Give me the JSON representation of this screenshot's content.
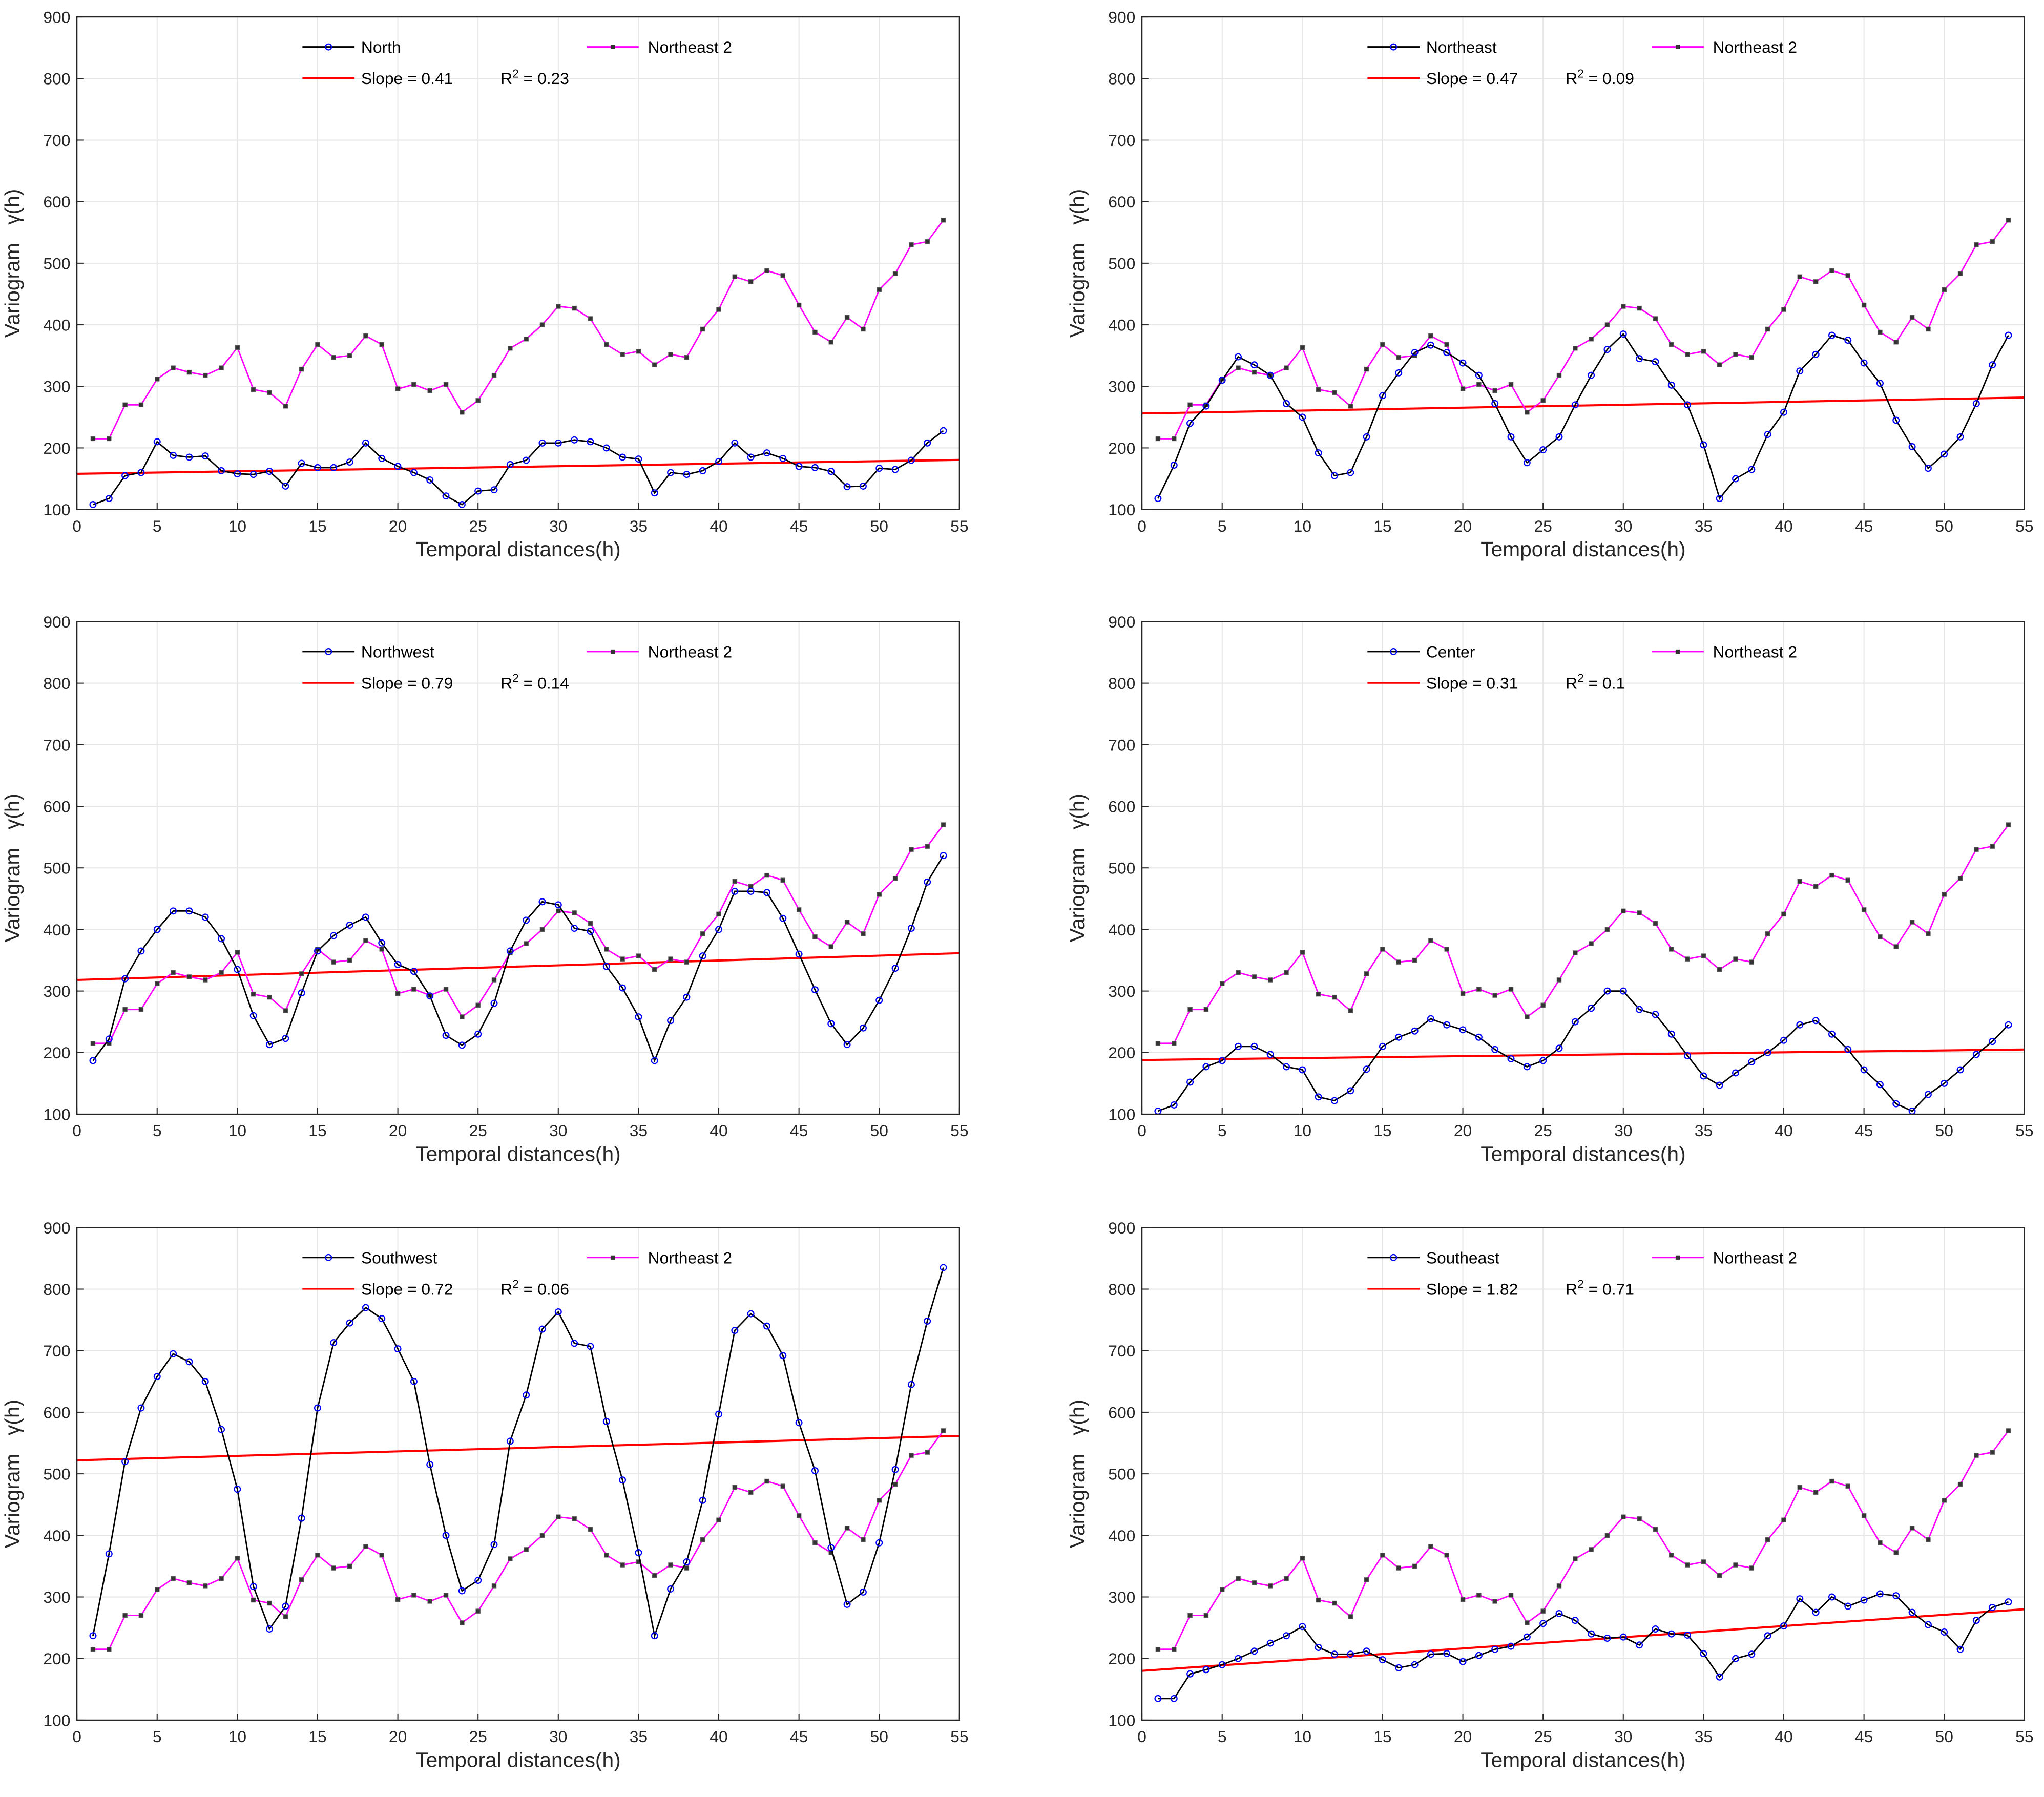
{
  "colors": {
    "reference": "#ff00ff",
    "station": "#000000",
    "station_marker": "#0000ff",
    "trend": "#ff0000",
    "grid": "#e6e6e6"
  },
  "chart_data": [
    {
      "type": "line",
      "xlabel": "Temporal distances(h)",
      "ylabel": "Variogram",
      "ylabel_symbol": "γ(h)",
      "xlim": [
        0,
        55
      ],
      "ylim": [
        100,
        900
      ],
      "xticks": [
        0,
        5,
        10,
        15,
        20,
        25,
        30,
        35,
        40,
        45,
        50,
        55
      ],
      "yticks": [
        100,
        200,
        300,
        400,
        500,
        600,
        700,
        800,
        900
      ],
      "grid": true,
      "legend_position": "top",
      "series": [
        {
          "name": "North",
          "values": [
            108,
            118,
            155,
            160,
            210,
            188,
            185,
            187,
            163,
            158,
            157,
            162,
            138,
            175,
            168,
            168,
            177,
            208,
            183,
            170,
            160,
            148,
            122,
            108,
            130,
            132,
            173,
            180,
            208,
            208,
            213,
            210,
            200,
            185,
            182,
            127,
            160,
            157,
            163,
            178,
            208,
            185,
            192,
            183,
            170,
            168,
            162,
            137,
            138,
            167,
            165,
            180,
            208,
            228
          ]
        },
        {
          "name": "Northeast 2",
          "values": [
            215,
            215,
            270,
            270,
            312,
            330,
            323,
            318,
            330,
            363,
            295,
            290,
            268,
            328,
            368,
            347,
            350,
            382,
            368,
            296,
            303,
            293,
            303,
            258,
            277,
            318,
            362,
            377,
            400,
            430,
            427,
            410,
            368,
            352,
            357,
            335,
            352,
            347,
            393,
            425,
            478,
            470,
            488,
            480,
            432,
            388,
            372,
            412,
            393,
            457,
            483,
            530,
            535,
            570
          ]
        }
      ],
      "trend": {
        "slope": 0.41,
        "intercept": 158,
        "slope_label": "Slope = 0.41",
        "r2_prefix": "R",
        "r2_sup": "2",
        "r2_value": " = 0.23"
      }
    },
    {
      "type": "line",
      "xlabel": "Temporal distances(h)",
      "ylabel": "Variogram",
      "ylabel_symbol": "γ(h)",
      "xlim": [
        0,
        55
      ],
      "ylim": [
        100,
        900
      ],
      "xticks": [
        0,
        5,
        10,
        15,
        20,
        25,
        30,
        35,
        40,
        45,
        50,
        55
      ],
      "yticks": [
        100,
        200,
        300,
        400,
        500,
        600,
        700,
        800,
        900
      ],
      "grid": true,
      "legend_position": "top",
      "series": [
        {
          "name": "Northeast",
          "values": [
            118,
            172,
            240,
            268,
            310,
            348,
            335,
            318,
            272,
            250,
            192,
            155,
            160,
            218,
            285,
            322,
            355,
            367,
            355,
            338,
            318,
            272,
            218,
            176,
            197,
            218,
            270,
            318,
            360,
            385,
            345,
            340,
            302,
            270,
            205,
            118,
            150,
            165,
            222,
            258,
            325,
            352,
            383,
            375,
            338,
            305,
            245,
            202,
            167,
            190,
            218,
            272,
            335,
            383
          ]
        },
        {
          "name": "Northeast 2",
          "values": [
            215,
            215,
            270,
            270,
            312,
            330,
            323,
            318,
            330,
            363,
            295,
            290,
            268,
            328,
            368,
            347,
            350,
            382,
            368,
            296,
            303,
            293,
            303,
            258,
            277,
            318,
            362,
            377,
            400,
            430,
            427,
            410,
            368,
            352,
            357,
            335,
            352,
            347,
            393,
            425,
            478,
            470,
            488,
            480,
            432,
            388,
            372,
            412,
            393,
            457,
            483,
            530,
            535,
            570
          ]
        }
      ],
      "trend": {
        "slope": 0.47,
        "intercept": 256,
        "slope_label": "Slope = 0.47",
        "r2_prefix": "R",
        "r2_sup": "2",
        "r2_value": " = 0.09"
      }
    },
    {
      "type": "line",
      "xlabel": "Temporal distances(h)",
      "ylabel": "Variogram",
      "ylabel_symbol": "γ(h)",
      "xlim": [
        0,
        55
      ],
      "ylim": [
        100,
        900
      ],
      "xticks": [
        0,
        5,
        10,
        15,
        20,
        25,
        30,
        35,
        40,
        45,
        50,
        55
      ],
      "yticks": [
        100,
        200,
        300,
        400,
        500,
        600,
        700,
        800,
        900
      ],
      "grid": true,
      "legend_position": "top",
      "series": [
        {
          "name": "Northwest",
          "values": [
            187,
            222,
            320,
            365,
            400,
            430,
            430,
            420,
            385,
            335,
            260,
            213,
            223,
            297,
            365,
            390,
            407,
            420,
            378,
            343,
            332,
            292,
            228,
            212,
            230,
            280,
            365,
            415,
            445,
            440,
            402,
            397,
            340,
            305,
            258,
            187,
            252,
            290,
            357,
            400,
            462,
            462,
            460,
            418,
            360,
            302,
            247,
            213,
            240,
            285,
            337,
            402,
            477,
            520
          ]
        },
        {
          "name": "Northeast 2",
          "values": [
            215,
            215,
            270,
            270,
            312,
            330,
            323,
            318,
            330,
            363,
            295,
            290,
            268,
            328,
            368,
            347,
            350,
            382,
            368,
            296,
            303,
            293,
            303,
            258,
            277,
            318,
            362,
            377,
            400,
            430,
            427,
            410,
            368,
            352,
            357,
            335,
            352,
            347,
            393,
            425,
            478,
            470,
            488,
            480,
            432,
            388,
            372,
            412,
            393,
            457,
            483,
            530,
            535,
            570
          ]
        }
      ],
      "trend": {
        "slope": 0.79,
        "intercept": 318,
        "slope_label": "Slope = 0.79",
        "r2_prefix": "R",
        "r2_sup": "2",
        "r2_value": " = 0.14"
      }
    },
    {
      "type": "line",
      "xlabel": "Temporal distances(h)",
      "ylabel": "Variogram",
      "ylabel_symbol": "γ(h)",
      "xlim": [
        0,
        55
      ],
      "ylim": [
        100,
        900
      ],
      "xticks": [
        0,
        5,
        10,
        15,
        20,
        25,
        30,
        35,
        40,
        45,
        50,
        55
      ],
      "yticks": [
        100,
        200,
        300,
        400,
        500,
        600,
        700,
        800,
        900
      ],
      "grid": true,
      "legend_position": "top",
      "series": [
        {
          "name": "Center",
          "values": [
            105,
            115,
            152,
            177,
            187,
            210,
            210,
            197,
            177,
            172,
            128,
            122,
            138,
            173,
            210,
            225,
            235,
            255,
            245,
            237,
            225,
            205,
            190,
            177,
            187,
            207,
            250,
            272,
            300,
            300,
            270,
            262,
            230,
            195,
            162,
            147,
            167,
            185,
            200,
            220,
            245,
            252,
            230,
            205,
            172,
            148,
            117,
            105,
            132,
            150,
            172,
            197,
            218,
            245
          ]
        },
        {
          "name": "Northeast 2",
          "values": [
            215,
            215,
            270,
            270,
            312,
            330,
            323,
            318,
            330,
            363,
            295,
            290,
            268,
            328,
            368,
            347,
            350,
            382,
            368,
            296,
            303,
            293,
            303,
            258,
            277,
            318,
            362,
            377,
            400,
            430,
            427,
            410,
            368,
            352,
            357,
            335,
            352,
            347,
            393,
            425,
            478,
            470,
            488,
            480,
            432,
            388,
            372,
            412,
            393,
            457,
            483,
            530,
            535,
            570
          ]
        }
      ],
      "trend": {
        "slope": 0.31,
        "intercept": 188,
        "slope_label": "Slope = 0.31",
        "r2_prefix": "R",
        "r2_sup": "2",
        "r2_value": " = 0.1"
      }
    },
    {
      "type": "line",
      "xlabel": "Temporal distances(h)",
      "ylabel": "Variogram",
      "ylabel_symbol": "γ(h)",
      "xlim": [
        0,
        55
      ],
      "ylim": [
        100,
        900
      ],
      "xticks": [
        0,
        5,
        10,
        15,
        20,
        25,
        30,
        35,
        40,
        45,
        50,
        55
      ],
      "yticks": [
        100,
        200,
        300,
        400,
        500,
        600,
        700,
        800,
        900
      ],
      "grid": true,
      "legend_position": "top",
      "series": [
        {
          "name": "Southwest",
          "values": [
            237,
            370,
            520,
            607,
            658,
            695,
            682,
            650,
            572,
            475,
            317,
            248,
            285,
            428,
            607,
            713,
            745,
            770,
            752,
            703,
            650,
            515,
            400,
            310,
            327,
            385,
            553,
            628,
            735,
            763,
            712,
            707,
            585,
            490,
            372,
            237,
            313,
            357,
            457,
            597,
            733,
            760,
            740,
            692,
            583,
            505,
            380,
            288,
            308,
            388,
            507,
            645,
            748,
            835
          ]
        },
        {
          "name": "Northeast 2",
          "values": [
            215,
            215,
            270,
            270,
            312,
            330,
            323,
            318,
            330,
            363,
            295,
            290,
            268,
            328,
            368,
            347,
            350,
            382,
            368,
            296,
            303,
            293,
            303,
            258,
            277,
            318,
            362,
            377,
            400,
            430,
            427,
            410,
            368,
            352,
            357,
            335,
            352,
            347,
            393,
            425,
            478,
            470,
            488,
            480,
            432,
            388,
            372,
            412,
            393,
            457,
            483,
            530,
            535,
            570
          ]
        }
      ],
      "trend": {
        "slope": 0.72,
        "intercept": 522,
        "slope_label": "Slope = 0.72",
        "r2_prefix": "R",
        "r2_sup": "2",
        "r2_value": " = 0.06"
      }
    },
    {
      "type": "line",
      "xlabel": "Temporal distances(h)",
      "ylabel": "Variogram",
      "ylabel_symbol": "γ(h)",
      "xlim": [
        0,
        55
      ],
      "ylim": [
        100,
        900
      ],
      "xticks": [
        0,
        5,
        10,
        15,
        20,
        25,
        30,
        35,
        40,
        45,
        50,
        55
      ],
      "yticks": [
        100,
        200,
        300,
        400,
        500,
        600,
        700,
        800,
        900
      ],
      "grid": true,
      "legend_position": "top",
      "series": [
        {
          "name": "Southeast",
          "values": [
            135,
            135,
            175,
            182,
            190,
            200,
            212,
            225,
            237,
            252,
            218,
            207,
            207,
            212,
            198,
            185,
            190,
            207,
            208,
            195,
            205,
            215,
            220,
            235,
            257,
            273,
            262,
            240,
            233,
            235,
            222,
            248,
            240,
            238,
            208,
            170,
            200,
            207,
            237,
            253,
            297,
            275,
            300,
            285,
            295,
            305,
            302,
            275,
            255,
            243,
            215,
            262,
            283,
            292
          ]
        },
        {
          "name": "Northeast 2",
          "values": [
            215,
            215,
            270,
            270,
            312,
            330,
            323,
            318,
            330,
            363,
            295,
            290,
            268,
            328,
            368,
            347,
            350,
            382,
            368,
            296,
            303,
            293,
            303,
            258,
            277,
            318,
            362,
            377,
            400,
            430,
            427,
            410,
            368,
            352,
            357,
            335,
            352,
            347,
            393,
            425,
            478,
            470,
            488,
            480,
            432,
            388,
            372,
            412,
            393,
            457,
            483,
            530,
            535,
            570
          ]
        }
      ],
      "trend": {
        "slope": 1.82,
        "intercept": 180,
        "slope_label": "Slope = 1.82",
        "r2_prefix": "R",
        "r2_sup": "2",
        "r2_value": " = 0.71"
      }
    }
  ]
}
